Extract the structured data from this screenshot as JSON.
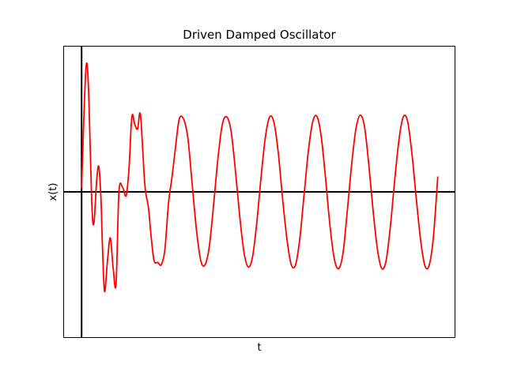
{
  "chart_data": {
    "type": "line",
    "title": "Driven Damped Oscillator",
    "xlabel": "t",
    "ylabel": "x(t)",
    "xlim": [
      -1.25,
      26.0
    ],
    "ylim": [
      -1.9,
      1.9
    ],
    "ticks": "none",
    "grid": false,
    "reference_lines": {
      "x": 0,
      "y": 0,
      "color": "#000000"
    },
    "series": [
      {
        "color": "#ff0000",
        "x": [
          0.0,
          0.2,
          0.35,
          0.5,
          0.7,
          0.85,
          1.05,
          1.2,
          1.35,
          1.45,
          1.6,
          1.8,
          2.0,
          2.2,
          2.4,
          2.6,
          2.85,
          3.1,
          3.3,
          3.5,
          3.7,
          3.9,
          4.1,
          4.4,
          4.65,
          4.85,
          5.05,
          5.3,
          5.55,
          5.8,
          6.05,
          6.3,
          6.55,
          6.8,
          7.1,
          7.4,
          7.7,
          8.0,
          8.3,
          8.6,
          8.9,
          9.2,
          9.5,
          9.8,
          10.1,
          10.4,
          10.7,
          11.0,
          11.3,
          11.6,
          11.9,
          12.2,
          12.5,
          12.8,
          13.1,
          13.4,
          13.7,
          14.0,
          14.3,
          14.6,
          14.9,
          15.2,
          15.5,
          15.8,
          16.1,
          16.4,
          16.7,
          17.0,
          17.3,
          17.6,
          17.9,
          18.2,
          18.5,
          18.8,
          19.1,
          19.4,
          19.7,
          20.0,
          20.3,
          20.6,
          20.9,
          21.2,
          21.5,
          21.8,
          22.1,
          22.4,
          22.7,
          23.0,
          23.3,
          23.6,
          23.9,
          24.2,
          24.5,
          24.8
        ],
        "values": [
          0.05,
          1.2,
          1.68,
          1.25,
          -0.1,
          -0.42,
          0.15,
          0.33,
          -0.1,
          -0.7,
          -1.3,
          -0.9,
          -0.6,
          -1.0,
          -1.2,
          0.0,
          0.06,
          -0.05,
          0.3,
          0.98,
          0.88,
          0.82,
          1.0,
          0.1,
          -0.2,
          -0.6,
          -0.9,
          -0.92,
          -0.95,
          -0.75,
          -0.15,
          0.2,
          0.6,
          0.95,
          0.95,
          0.7,
          0.1,
          -0.5,
          -0.9,
          -0.95,
          -0.7,
          -0.15,
          0.45,
          0.88,
          0.98,
          0.8,
          0.3,
          -0.3,
          -0.78,
          -0.98,
          -0.85,
          -0.4,
          0.2,
          0.72,
          0.98,
          0.9,
          0.5,
          -0.1,
          -0.62,
          -0.95,
          -0.95,
          -0.6,
          -0.02,
          0.55,
          0.92,
          0.98,
          0.7,
          0.15,
          -0.45,
          -0.88,
          -1.0,
          -0.8,
          -0.25,
          0.35,
          0.82,
          1.0,
          0.85,
          0.35,
          -0.25,
          -0.75,
          -1.0,
          -0.9,
          -0.45,
          0.15,
          0.68,
          0.98,
          0.92,
          0.5,
          -0.08,
          -0.62,
          -0.96,
          -0.96,
          -0.58,
          0.2
        ]
      }
    ]
  }
}
